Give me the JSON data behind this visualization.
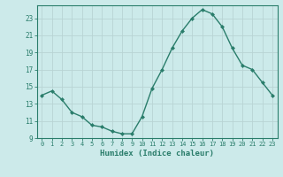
{
  "x": [
    0,
    1,
    2,
    3,
    4,
    5,
    6,
    7,
    8,
    9,
    10,
    11,
    12,
    13,
    14,
    15,
    16,
    17,
    18,
    19,
    20,
    21,
    22,
    23
  ],
  "y": [
    14.0,
    14.5,
    13.5,
    12.0,
    11.5,
    10.5,
    10.3,
    9.8,
    9.5,
    9.5,
    11.5,
    14.8,
    17.0,
    19.5,
    21.5,
    23.0,
    24.0,
    23.5,
    22.0,
    19.5,
    17.5,
    17.0,
    15.5,
    14.0
  ],
  "xlabel": "Humidex (Indice chaleur)",
  "ylim": [
    9,
    24.5
  ],
  "xlim": [
    -0.5,
    23.5
  ],
  "yticks": [
    9,
    11,
    13,
    15,
    17,
    19,
    21,
    23
  ],
  "xticks": [
    0,
    1,
    2,
    3,
    4,
    5,
    6,
    7,
    8,
    9,
    10,
    11,
    12,
    13,
    14,
    15,
    16,
    17,
    18,
    19,
    20,
    21,
    22,
    23
  ],
  "line_color": "#2a7d6b",
  "marker": "D",
  "marker_size": 2.0,
  "bg_color": "#cceaea",
  "grid_color": "#b8d4d4",
  "fig_bg": "#cceaea",
  "tick_color": "#2a7d6b",
  "spine_color": "#2a7d6b"
}
